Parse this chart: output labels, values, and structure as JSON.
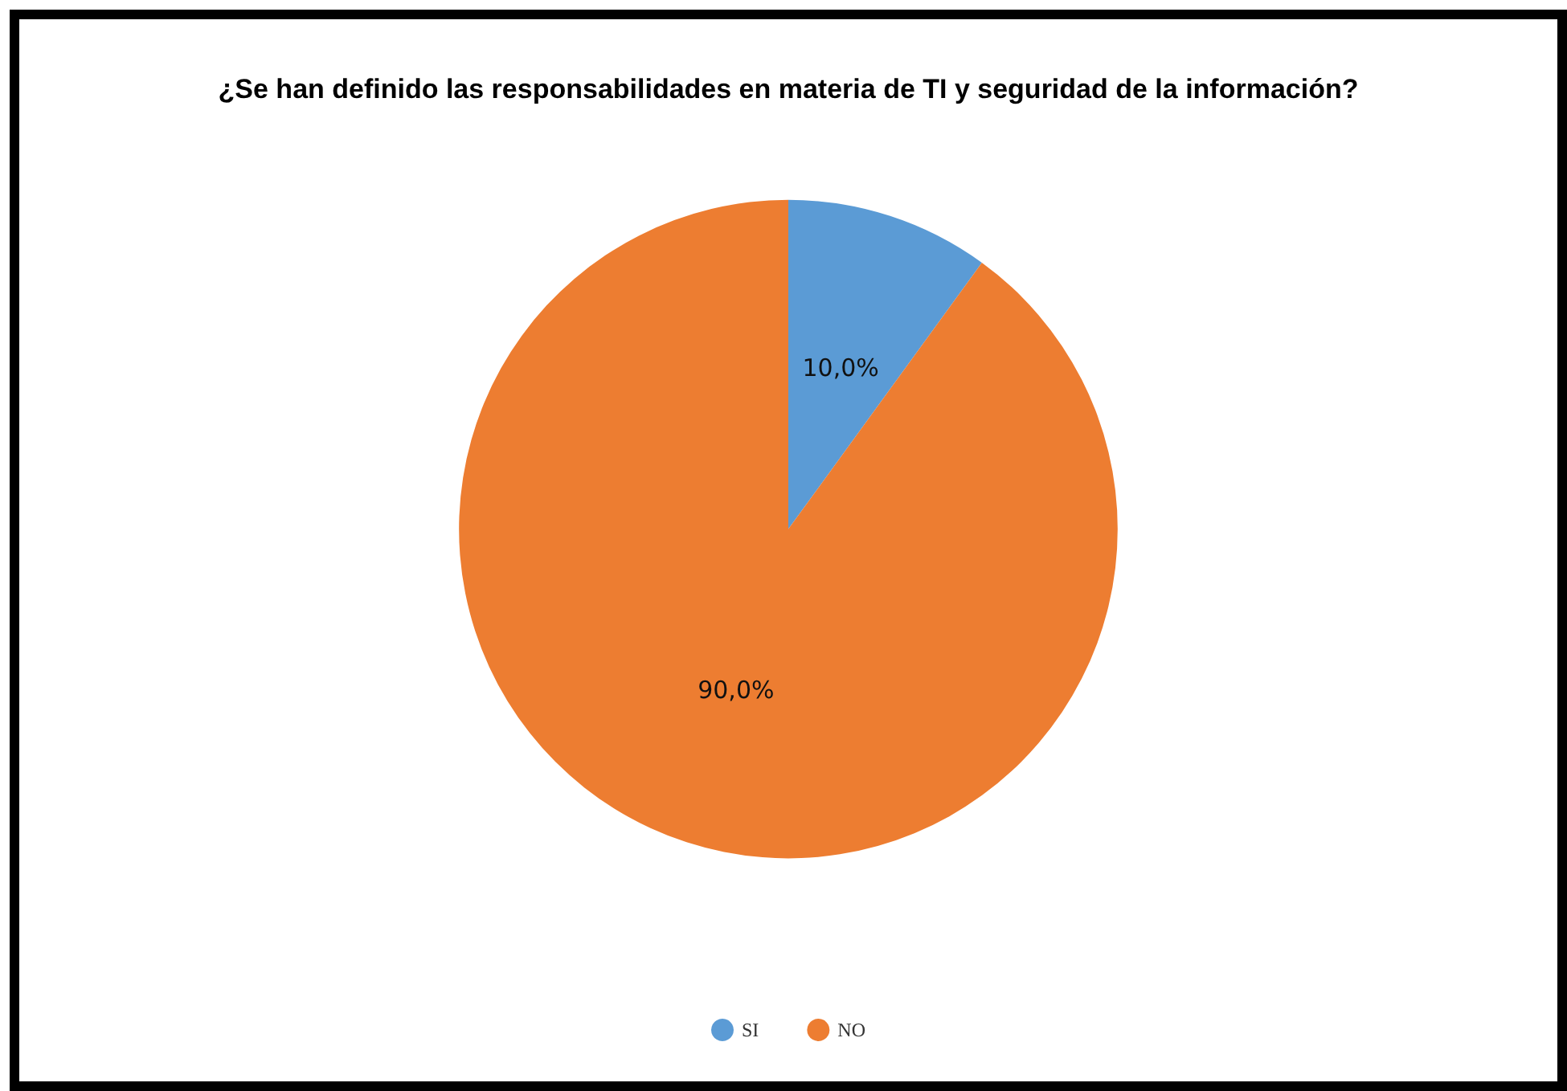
{
  "chart_data": {
    "type": "pie",
    "title": "¿Se han definido las responsabilidades en materia de TI y seguridad de la información?",
    "categories": [
      "SI",
      "NO"
    ],
    "values": [
      10,
      90
    ],
    "colors": [
      "#5b9bd5",
      "#ed7d31"
    ],
    "value_labels": [
      "10,0%",
      "90,0%"
    ],
    "legend": "bottom"
  }
}
